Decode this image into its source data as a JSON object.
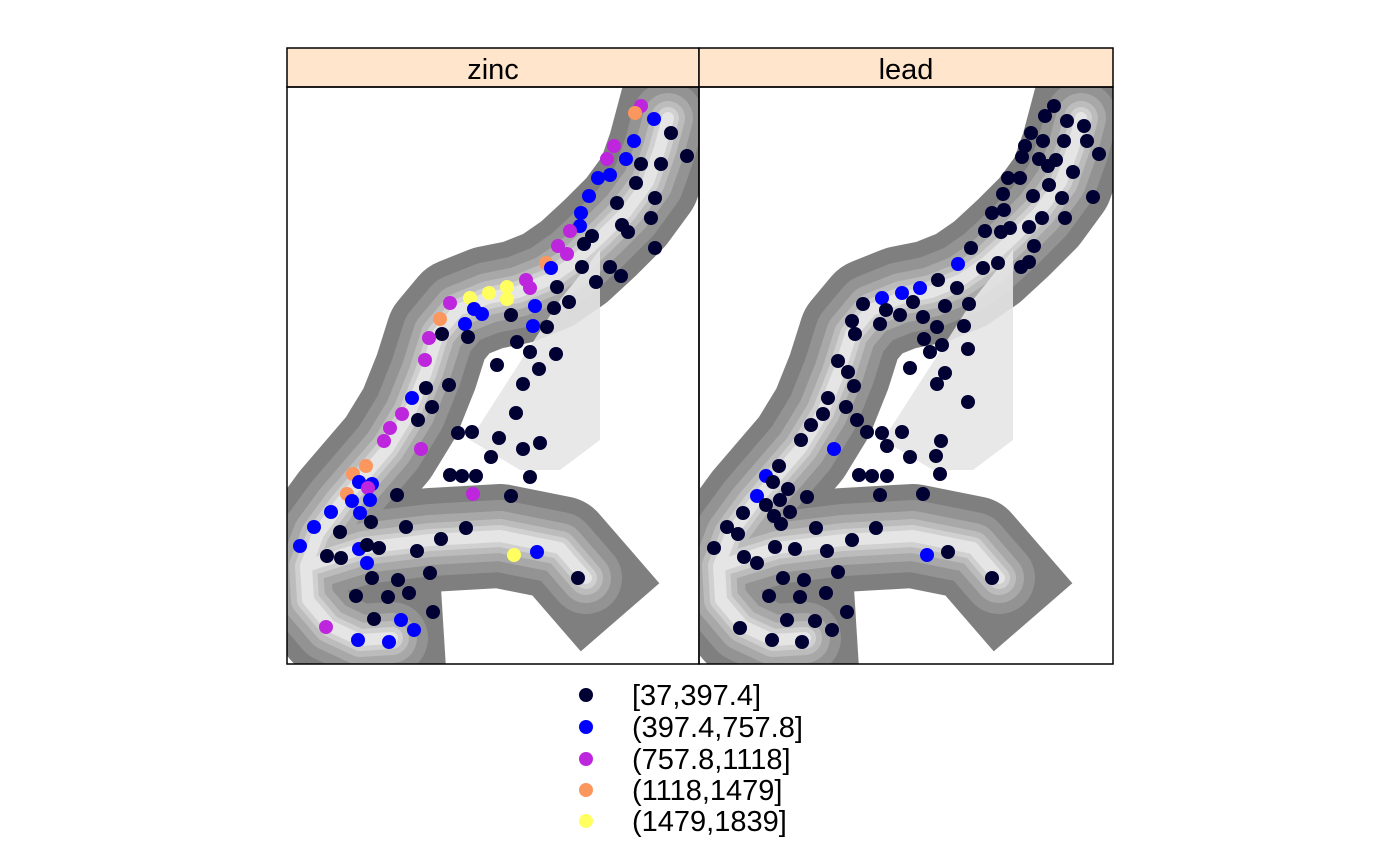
{
  "panels": [
    {
      "name": "zinc",
      "points": [
        [
          "(757.8,1118]",
          641,
          106
        ],
        [
          "(1118,1479]",
          635,
          113
        ],
        [
          "(397.4,757.8]",
          654,
          119
        ],
        [
          "[37,397.4]",
          671,
          133
        ],
        [
          "[37,397.4]",
          687,
          156
        ],
        [
          "(397.4,757.8]",
          634,
          141
        ],
        [
          "(757.8,1118]",
          614,
          146
        ],
        [
          "(757.8,1118]",
          607,
          159
        ],
        [
          "(397.4,757.8]",
          626,
          159
        ],
        [
          "[37,397.4]",
          641,
          164
        ],
        [
          "[37,397.4]",
          661,
          164
        ],
        [
          "[37,397.4]",
          636,
          183
        ],
        [
          "(397.4,757.8]",
          598,
          178
        ],
        [
          "(397.4,757.8]",
          589,
          196
        ],
        [
          "(397.4,757.8]",
          610,
          175
        ],
        [
          "[37,397.4]",
          655,
          198
        ],
        [
          "[37,397.4]",
          617,
          203
        ],
        [
          "[37,397.4]",
          651,
          218
        ],
        [
          "(397.4,757.8]",
          581,
          213
        ],
        [
          "(397.4,757.8]",
          580,
          226
        ],
        [
          "[37,397.4]",
          622,
          225
        ],
        [
          "[37,397.4]",
          628,
          232
        ],
        [
          "[37,397.4]",
          592,
          236
        ],
        [
          "(757.8,1118]",
          570,
          231
        ],
        [
          "(757.8,1118]",
          558,
          246
        ],
        [
          "(757.8,1118]",
          567,
          254
        ],
        [
          "[37,397.4]",
          655,
          248
        ],
        [
          "[37,397.4]",
          584,
          244
        ],
        [
          "(1118,1479]",
          546,
          263
        ],
        [
          "(397.4,757.8]",
          551,
          268
        ],
        [
          "[37,397.4]",
          582,
          267
        ],
        [
          "[37,397.4]",
          610,
          267
        ],
        [
          "[37,397.4]",
          621,
          276
        ],
        [
          "[37,397.4]",
          596,
          282
        ],
        [
          "(757.8,1118]",
          526,
          280
        ],
        [
          "(757.8,1118]",
          530,
          288
        ],
        [
          "(1479,1839]",
          507,
          287
        ],
        [
          "(1479,1839]",
          489,
          293
        ],
        [
          "(1479,1839]",
          507,
          299
        ],
        [
          "(1479,1839]",
          470,
          298
        ],
        [
          "[37,397.4]",
          557,
          287
        ],
        [
          "[37,397.4]",
          569,
          302
        ],
        [
          "[37,397.4]",
          554,
          308
        ],
        [
          "(397.4,757.8]",
          535,
          306
        ],
        [
          "(397.4,757.8]",
          474,
          309
        ],
        [
          "(397.4,757.8]",
          482,
          314
        ],
        [
          "(757.8,1118]",
          450,
          303
        ],
        [
          "(1118,1479]",
          440,
          319
        ],
        [
          "(397.4,757.8]",
          465,
          324
        ],
        [
          "(397.4,757.8]",
          533,
          326
        ],
        [
          "[37,397.4]",
          511,
          315
        ],
        [
          "[37,397.4]",
          547,
          327
        ],
        [
          "[37,397.4]",
          468,
          337
        ],
        [
          "[37,397.4]",
          442,
          334
        ],
        [
          "(757.8,1118]",
          429,
          338
        ],
        [
          "[37,397.4]",
          517,
          342
        ],
        [
          "[37,397.4]",
          530,
          352
        ],
        [
          "[37,397.4]",
          556,
          354
        ],
        [
          "(757.8,1118]",
          425,
          360
        ],
        [
          "[37,397.4]",
          497,
          365
        ],
        [
          "[37,397.4]",
          539,
          369
        ],
        [
          "[37,397.4]",
          523,
          384
        ],
        [
          "[37,397.4]",
          426,
          388
        ],
        [
          "(397.4,757.8]",
          412,
          398
        ],
        [
          "[37,397.4]",
          449,
          385
        ],
        [
          "[37,397.4]",
          432,
          407
        ],
        [
          "[37,397.4]",
          516,
          413
        ],
        [
          "(757.8,1118]",
          402,
          414
        ],
        [
          "[37,397.4]",
          418,
          420
        ],
        [
          "(757.8,1118]",
          390,
          428
        ],
        [
          "(757.8,1118]",
          384,
          441
        ],
        [
          "[37,397.4]",
          472,
          432
        ],
        [
          "[37,397.4]",
          458,
          433
        ],
        [
          "[37,397.4]",
          499,
          438
        ],
        [
          "[37,397.4]",
          540,
          443
        ],
        [
          "[37,397.4]",
          523,
          449
        ],
        [
          "(757.8,1118]",
          421,
          449
        ],
        [
          "[37,397.4]",
          491,
          457
        ],
        [
          "(1118,1479]",
          366,
          466
        ],
        [
          "(1118,1479]",
          353,
          474
        ],
        [
          "(1118,1479]",
          347,
          494
        ],
        [
          "(397.4,757.8]",
          359,
          482
        ],
        [
          "(397.4,757.8]",
          372,
          484
        ],
        [
          "(757.8,1118]",
          368,
          488
        ],
        [
          "[37,397.4]",
          450,
          475
        ],
        [
          "[37,397.4]",
          462,
          476
        ],
        [
          "[37,397.4]",
          476,
          476
        ],
        [
          "[37,397.4]",
          530,
          477
        ],
        [
          "[37,397.4]",
          511,
          496
        ],
        [
          "(757.8,1118]",
          473,
          494
        ],
        [
          "(397.4,757.8]",
          352,
          501
        ],
        [
          "(397.4,757.8]",
          360,
          513
        ],
        [
          "(397.4,757.8]",
          370,
          500
        ],
        [
          "[37,397.4]",
          397,
          495
        ],
        [
          "(397.4,757.8]",
          331,
          512
        ],
        [
          "(397.4,757.8]",
          314,
          527
        ],
        [
          "(397.4,757.8]",
          300,
          546
        ],
        [
          "[37,397.4]",
          371,
          522
        ],
        [
          "[37,397.4]",
          406,
          527
        ],
        [
          "[37,397.4]",
          340,
          532
        ],
        [
          "[37,397.4]",
          466,
          528
        ],
        [
          "[37,397.4]",
          327,
          556
        ],
        [
          "(397.4,757.8]",
          359,
          549
        ],
        [
          "[37,397.4]",
          367,
          545
        ],
        [
          "[37,397.4]",
          379,
          548
        ],
        [
          "[37,397.4]",
          417,
          551
        ],
        [
          "[37,397.4]",
          441,
          539
        ],
        [
          "(1479,1839]",
          514,
          555
        ],
        [
          "(397.4,757.8]",
          537,
          552
        ],
        [
          "[37,397.4]",
          341,
          558
        ],
        [
          "(397.4,757.8]",
          367,
          563
        ],
        [
          "[37,397.4]",
          372,
          578
        ],
        [
          "[37,397.4]",
          398,
          580
        ],
        [
          "[37,397.4]",
          430,
          573
        ],
        [
          "[37,397.4]",
          578,
          578
        ],
        [
          "[37,397.4]",
          356,
          596
        ],
        [
          "[37,397.4]",
          388,
          597
        ],
        [
          "[37,397.4]",
          409,
          593
        ],
        [
          "[37,397.4]",
          433,
          612
        ],
        [
          "[37,397.4]",
          374,
          619
        ],
        [
          "(397.4,757.8]",
          401,
          620
        ],
        [
          "(397.4,757.8]",
          414,
          630
        ],
        [
          "(757.8,1118]",
          326,
          627
        ],
        [
          "(397.4,757.8]",
          358,
          640
        ],
        [
          "(397.4,757.8]",
          389,
          642
        ]
      ]
    },
    {
      "name": "lead",
      "points": [
        [
          "[37,397.4]",
          1054,
          106
        ],
        [
          "[37,397.4]",
          1045,
          116
        ],
        [
          "[37,397.4]",
          1067,
          121
        ],
        [
          "[37,397.4]",
          1084,
          126
        ],
        [
          "[37,397.4]",
          1031,
          133
        ],
        [
          "[37,397.4]",
          1043,
          141
        ],
        [
          "[37,397.4]",
          1064,
          141
        ],
        [
          "[37,397.4]",
          1087,
          141
        ],
        [
          "[37,397.4]",
          1025,
          146
        ],
        [
          "[37,397.4]",
          1099,
          154
        ],
        [
          "[37,397.4]",
          1056,
          160
        ],
        [
          "[37,397.4]",
          1022,
          157
        ],
        [
          "[37,397.4]",
          1039,
          159
        ],
        [
          "[37,397.4]",
          1048,
          166
        ],
        [
          "[37,397.4]",
          1073,
          172
        ],
        [
          "[37,397.4]",
          1008,
          178
        ],
        [
          "[37,397.4]",
          1020,
          178
        ],
        [
          "[37,397.4]",
          1049,
          185
        ],
        [
          "[37,397.4]",
          1093,
          197
        ],
        [
          "[37,397.4]",
          1003,
          194
        ],
        [
          "[37,397.4]",
          1004,
          210
        ],
        [
          "[37,397.4]",
          1033,
          196
        ],
        [
          "[37,397.4]",
          1062,
          198
        ],
        [
          "[37,397.4]",
          992,
          213
        ],
        [
          "[37,397.4]",
          1042,
          218
        ],
        [
          "[37,397.4]",
          1065,
          218
        ],
        [
          "[37,397.4]",
          1029,
          227
        ],
        [
          "[37,397.4]",
          985,
          231
        ],
        [
          "[37,397.4]",
          1001,
          232
        ],
        [
          "[37,397.4]",
          1010,
          228
        ],
        [
          "[37,397.4]",
          1034,
          246
        ],
        [
          "[37,397.4]",
          971,
          248
        ],
        [
          "[37,397.4]",
          998,
          263
        ],
        [
          "(397.4,757.8]",
          958,
          264
        ],
        [
          "[37,397.4]",
          1029,
          262
        ],
        [
          "[37,397.4]",
          1021,
          267
        ],
        [
          "[37,397.4]",
          983,
          268
        ],
        [
          "[37,397.4]",
          938,
          280
        ],
        [
          "(397.4,757.8]",
          920,
          288
        ],
        [
          "(397.4,757.8]",
          902,
          293
        ],
        [
          "(397.4,757.8]",
          882,
          298
        ],
        [
          "[37,397.4]",
          913,
          302
        ],
        [
          "[37,397.4]",
          957,
          288
        ],
        [
          "[37,397.4]",
          969,
          304
        ],
        [
          "[37,397.4]",
          945,
          306
        ],
        [
          "[37,397.4]",
          863,
          304
        ],
        [
          "[37,397.4]",
          886,
          310
        ],
        [
          "[37,397.4]",
          900,
          315
        ],
        [
          "[37,397.4]",
          923,
          317
        ],
        [
          "[37,397.4]",
          852,
          321
        ],
        [
          "[37,397.4]",
          880,
          324
        ],
        [
          "[37,397.4]",
          937,
          327
        ],
        [
          "[37,397.4]",
          964,
          326
        ],
        [
          "[37,397.4]",
          855,
          334
        ],
        [
          "[37,397.4]",
          924,
          339
        ],
        [
          "[37,397.4]",
          942,
          345
        ],
        [
          "[37,397.4]",
          968,
          349
        ],
        [
          "[37,397.4]",
          838,
          361
        ],
        [
          "[37,397.4]",
          910,
          368
        ],
        [
          "[37,397.4]",
          930,
          352
        ],
        [
          "[37,397.4]",
          945,
          373
        ],
        [
          "[37,397.4]",
          848,
          372
        ],
        [
          "[37,397.4]",
          854,
          386
        ],
        [
          "[37,397.4]",
          937,
          384
        ],
        [
          "[37,397.4]",
          828,
          398
        ],
        [
          "[37,397.4]",
          968,
          402
        ],
        [
          "[37,397.4]",
          846,
          407
        ],
        [
          "[37,397.4]",
          823,
          414
        ],
        [
          "[37,397.4]",
          811,
          425
        ],
        [
          "[37,397.4]",
          857,
          420
        ],
        [
          "[37,397.4]",
          801,
          440
        ],
        [
          "[37,397.4]",
          867,
          432
        ],
        [
          "[37,397.4]",
          882,
          433
        ],
        [
          "[37,397.4]",
          902,
          432
        ],
        [
          "[37,397.4]",
          941,
          441
        ],
        [
          "(397.4,757.8]",
          834,
          449
        ],
        [
          "[37,397.4]",
          887,
          446
        ],
        [
          "[37,397.4]",
          910,
          457
        ],
        [
          "[37,397.4]",
          936,
          456
        ],
        [
          "(397.4,757.8]",
          766,
          476
        ],
        [
          "[37,397.4]",
          779,
          466
        ],
        [
          "[37,397.4]",
          773,
          482
        ],
        [
          "[37,397.4]",
          859,
          475
        ],
        [
          "[37,397.4]",
          872,
          476
        ],
        [
          "[37,397.4]",
          887,
          476
        ],
        [
          "[37,397.4]",
          940,
          474
        ],
        [
          "[37,397.4]",
          788,
          489
        ],
        [
          "[37,397.4]",
          880,
          495
        ],
        [
          "[37,397.4]",
          923,
          494
        ],
        [
          "(397.4,757.8]",
          757,
          496
        ],
        [
          "[37,397.4]",
          766,
          505
        ],
        [
          "[37,397.4]",
          780,
          500
        ],
        [
          "[37,397.4]",
          807,
          497
        ],
        [
          "[37,397.4]",
          790,
          512
        ],
        [
          "[37,397.4]",
          774,
          516
        ],
        [
          "[37,397.4]",
          743,
          513
        ],
        [
          "[37,397.4]",
          727,
          527
        ],
        [
          "[37,397.4]",
          781,
          524
        ],
        [
          "[37,397.4]",
          816,
          528
        ],
        [
          "[37,397.4]",
          876,
          528
        ],
        [
          "[37,397.4]",
          738,
          534
        ],
        [
          "[37,397.4]",
          775,
          547
        ],
        [
          "[37,397.4]",
          795,
          549
        ],
        [
          "[37,397.4]",
          714,
          548
        ],
        [
          "[37,397.4]",
          852,
          540
        ],
        [
          "[37,397.4]",
          827,
          551
        ],
        [
          "(397.4,757.8]",
          927,
          555
        ],
        [
          "[37,397.4]",
          948,
          552
        ],
        [
          "[37,397.4]",
          744,
          557
        ],
        [
          "[37,397.4]",
          757,
          563
        ],
        [
          "[37,397.4]",
          783,
          578
        ],
        [
          "[37,397.4]",
          804,
          580
        ],
        [
          "[37,397.4]",
          838,
          572
        ],
        [
          "[37,397.4]",
          992,
          578
        ],
        [
          "[37,397.4]",
          769,
          596
        ],
        [
          "[37,397.4]",
          800,
          597
        ],
        [
          "[37,397.4]",
          826,
          593
        ],
        [
          "[37,397.4]",
          847,
          612
        ],
        [
          "[37,397.4]",
          787,
          620
        ],
        [
          "[37,397.4]",
          815,
          621
        ],
        [
          "[37,397.4]",
          832,
          630
        ],
        [
          "[37,397.4]",
          740,
          628
        ],
        [
          "[37,397.4]",
          772,
          640
        ],
        [
          "[37,397.4]",
          802,
          642
        ]
      ]
    }
  ],
  "legend": {
    "items": [
      {
        "label": "[37,397.4]",
        "color": "#000033"
      },
      {
        "label": "(397.4,757.8]",
        "color": "#0000ff"
      },
      {
        "label": "(757.8,1118]",
        "color": "#bd26dd"
      },
      {
        "label": "(1118,1479]",
        "color": "#fc965f"
      },
      {
        "label": "(1479,1839]",
        "color": "#ffff60"
      }
    ]
  },
  "colors": {
    "strip": "#ffe5cc",
    "grid_levels": [
      "#7f7f7f",
      "#939393",
      "#a8a8a8",
      "#bcbcbc",
      "#d0d0d0",
      "#e5e5e5"
    ]
  }
}
